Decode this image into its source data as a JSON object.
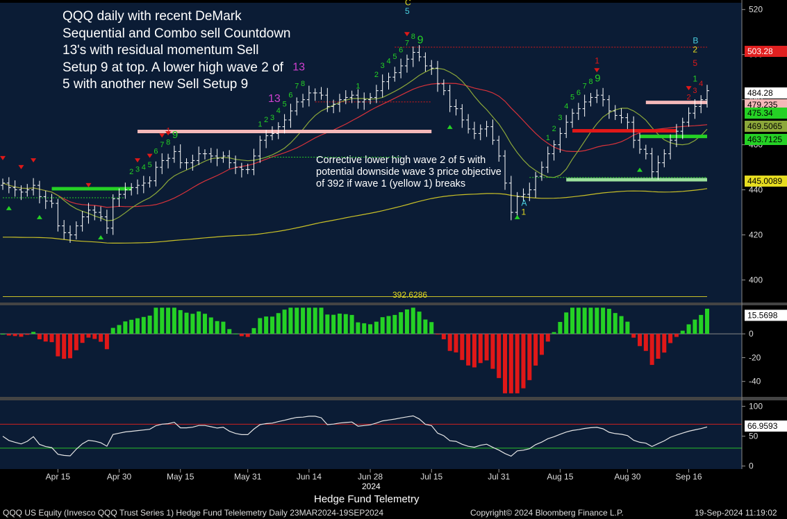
{
  "annotations": {
    "main": "QQQ daily with recent DeMark Sequential and Combo sell Countdown 13's with residual momentum Sell Setup 9 at top.  A lower high wave 2 of 5 with another new Sell Setup 9",
    "wave": "Corrective lower high wave 2 of 5 with potential downside wave 3 price objective of 392 if wave 1 (yellow 1) breaks",
    "target_value": "392.6286"
  },
  "footer": {
    "left": "QQQ US Equity (Invesco QQQ Trust Series 1) Hedge Fund Telelemetry  Daily 23MAR2024-19SEP2024",
    "center": "Copyright© 2024 Bloomberg Finance L.P.",
    "right": "19-Sep-2024 11:19:02",
    "source": "Hedge Fund Telemetry",
    "year": "2024"
  },
  "colors": {
    "background": "#0b1c35",
    "up": "#25d125",
    "down": "#e01818",
    "ma_fast": "#8ca83a",
    "ma_mid": "#d8323a",
    "ma_slow": "#c9c027",
    "rsi_line": "#e6e6e6",
    "rsi_upper": "#d02020",
    "rsi_lower": "#2bc02b"
  },
  "chart_data": [
    {
      "type": "line",
      "subtype": "daily price bars (OHLC)",
      "grid": false,
      "x_tick_labels": [
        "Apr 15",
        "Apr 30",
        "May 15",
        "May 31",
        "Jun 14",
        "Jun 28",
        "Jul 15",
        "Jul 31",
        "Aug 15",
        "Aug 30",
        "Sep 16"
      ],
      "x_tick_index": [
        9,
        19,
        29,
        40,
        50,
        60,
        70,
        81,
        91,
        102,
        112
      ],
      "ylim": [
        390,
        523
      ],
      "y_ticks": [
        400,
        420,
        440,
        460,
        480,
        500,
        520
      ],
      "close": [
        443,
        441,
        440,
        439,
        440,
        442,
        437,
        435,
        434,
        424,
        421,
        420,
        424,
        428,
        431,
        430,
        428,
        423,
        436,
        438,
        440,
        441,
        442,
        443,
        444,
        450,
        453,
        454,
        457,
        452,
        452,
        453,
        456,
        456,
        455,
        454,
        455,
        452,
        450,
        449,
        449,
        455,
        462,
        464,
        465,
        468,
        471,
        475,
        479,
        480,
        483,
        483,
        482,
        477,
        478,
        480,
        481,
        482,
        479,
        480,
        481,
        484,
        488,
        490,
        492,
        495,
        498,
        501,
        499,
        495,
        494,
        487,
        484,
        477,
        476,
        471,
        467,
        465,
        467,
        468,
        462,
        455,
        443,
        430,
        437,
        438,
        440,
        446,
        450,
        456,
        460,
        465,
        470,
        474,
        476,
        479,
        481,
        482,
        480,
        475,
        473,
        472,
        470,
        462,
        458,
        456,
        448,
        452,
        456,
        462,
        466,
        470,
        474,
        477,
        480,
        484
      ],
      "labels": {
        "target": "392.6286",
        "wave_letters": [
          "C",
          "5",
          "B",
          "2",
          "5",
          "1",
          "1",
          "A",
          "1",
          "1"
        ]
      },
      "last_value_labels": [
        {
          "value": "503.28",
          "color": "#e02020"
        },
        {
          "value": "484.28",
          "color": "#ffffff"
        },
        {
          "value": "479.235",
          "color": "#f4b8b8"
        },
        {
          "value": "475.34",
          "color": "#25d125"
        },
        {
          "value": "469.5065",
          "color": "#8ca83a"
        },
        {
          "value": "463.7125",
          "color": "#25d125"
        },
        {
          "value": "445.0089",
          "color": "#e6dc20"
        }
      ]
    },
    {
      "type": "bar",
      "subtype": "momentum histogram",
      "ylim": [
        -53,
        24
      ],
      "y_ticks": [
        0,
        -20,
        -40
      ],
      "last_value": "15.5698"
    },
    {
      "type": "line",
      "subtype": "RSI",
      "ylim": [
        -5,
        110
      ],
      "y_ticks": [
        0,
        50,
        100
      ],
      "upper": 70,
      "lower": 30,
      "last_value": "66.9593"
    }
  ]
}
